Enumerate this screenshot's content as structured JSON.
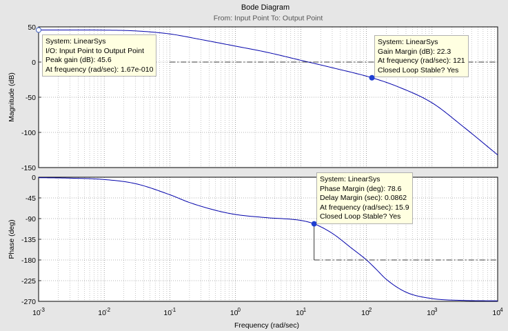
{
  "title": "Bode Diagram",
  "subtitle": "From: Input Point  To: Output Point",
  "chart_data": [
    {
      "type": "line",
      "panel": "magnitude",
      "ylabel": "Magnitude (dB)",
      "ylim": [
        -150,
        50
      ],
      "yticks": [
        "50",
        "0",
        "-50",
        "-100",
        "-150"
      ],
      "xscale": "log",
      "xlim": [
        0.001,
        10000
      ],
      "grid": true,
      "series": [
        {
          "x": [
            0.001,
            0.01,
            0.03,
            0.1,
            0.3,
            1,
            3,
            10,
            30,
            121,
            300,
            1000,
            3000,
            10000
          ],
          "y": [
            45.6,
            45.4,
            44.3,
            40.0,
            32.0,
            22.7,
            14.0,
            2.5,
            -8.0,
            -22.3,
            -35.0,
            -58.0,
            -92.0,
            -132.0
          ]
        }
      ],
      "reference_line": 0,
      "markers": [
        {
          "x": 0.001,
          "y": 45.6,
          "style": "open"
        },
        {
          "x": 121,
          "y": -22.3,
          "style": "filled"
        }
      ]
    },
    {
      "type": "line",
      "panel": "phase",
      "ylabel": "Phase (deg)",
      "ylim": [
        -270,
        0
      ],
      "yticks": [
        "0",
        "-45",
        "-90",
        "-135",
        "-180",
        "-225",
        "-270"
      ],
      "xscale": "log",
      "xlim": [
        0.001,
        10000
      ],
      "xlabel": "Frequency  (rad/sec)",
      "xtick_base": "10",
      "xtick_exponents": [
        "-3",
        "-2",
        "-1",
        "0",
        "1",
        "2",
        "3",
        "4"
      ],
      "grid": true,
      "series": [
        {
          "x": [
            0.001,
            0.003,
            0.01,
            0.03,
            0.1,
            0.2,
            0.5,
            1,
            3,
            10,
            15.9,
            30,
            60,
            100,
            140,
            200,
            400,
            1000,
            3000,
            10000
          ],
          "y": [
            -1,
            -2,
            -5,
            -14,
            -38,
            -55,
            -72,
            -81,
            -88,
            -94,
            -101.4,
            -122,
            -155,
            -180,
            -200,
            -222,
            -250,
            -264,
            -268,
            -269
          ]
        }
      ],
      "reference_line": -180,
      "markers": [
        {
          "x": 15.9,
          "y": -101.4,
          "style": "filled"
        }
      ]
    }
  ],
  "tooltips": {
    "peak": [
      "System: LinearSys",
      "I/O: Input Point to Output Point",
      "Peak gain (dB): 45.6",
      "At frequency (rad/sec): 1.67e-010"
    ],
    "gain_margin": [
      "System: LinearSys",
      "Gain Margin (dB): 22.3",
      "At frequency (rad/sec): 121",
      "Closed Loop Stable? Yes"
    ],
    "phase_margin": [
      "System: LinearSys",
      "Phase Margin (deg): 78.6",
      "Delay Margin (sec): 0.0862",
      "At frequency (rad/sec): 15.9",
      "Closed Loop Stable? Yes"
    ]
  },
  "colors": {
    "curve": "#0000aa",
    "marker": "#1f3fd0",
    "axes_bg": "#ffffff",
    "figure_bg": "#e6e6e6"
  }
}
